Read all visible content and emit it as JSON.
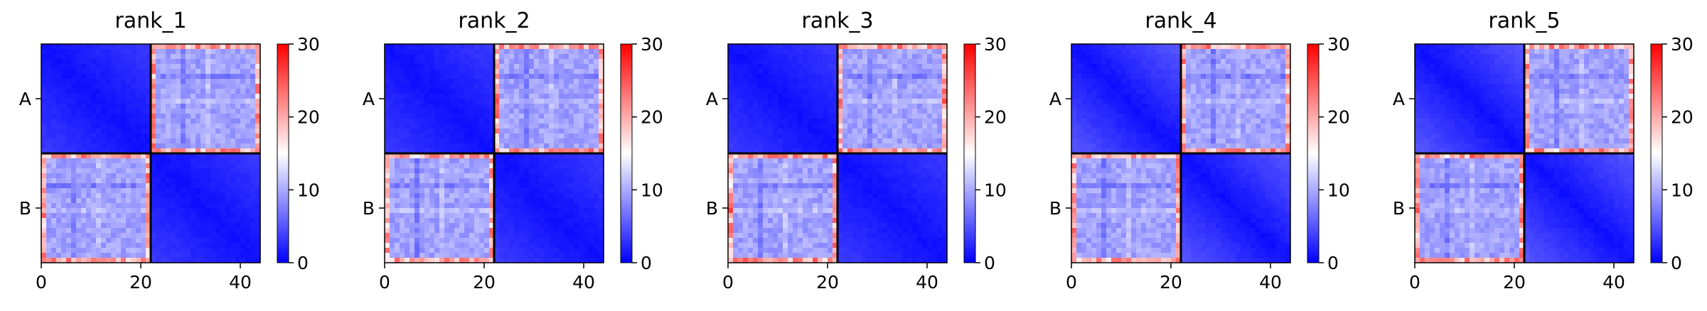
{
  "chart_data": [
    {
      "type": "heatmap",
      "title": "rank_1",
      "chain_labels": [
        "A",
        "B"
      ],
      "x_ticks": [
        0,
        20,
        40
      ],
      "xlim": [
        0,
        44
      ],
      "chain_boundary": 22,
      "colorbar": {
        "min": 0,
        "max": 30,
        "ticks": [
          0,
          10,
          20,
          30
        ],
        "colormap": "bwr"
      }
    },
    {
      "type": "heatmap",
      "title": "rank_2",
      "chain_labels": [
        "A",
        "B"
      ],
      "x_ticks": [
        0,
        20,
        40
      ],
      "xlim": [
        0,
        44
      ],
      "chain_boundary": 22,
      "colorbar": {
        "min": 0,
        "max": 30,
        "ticks": [
          0,
          10,
          20,
          30
        ],
        "colormap": "bwr"
      }
    },
    {
      "type": "heatmap",
      "title": "rank_3",
      "chain_labels": [
        "A",
        "B"
      ],
      "x_ticks": [
        0,
        20,
        40
      ],
      "xlim": [
        0,
        44
      ],
      "chain_boundary": 22,
      "colorbar": {
        "min": 0,
        "max": 30,
        "ticks": [
          0,
          10,
          20,
          30
        ],
        "colormap": "bwr"
      }
    },
    {
      "type": "heatmap",
      "title": "rank_4",
      "chain_labels": [
        "A",
        "B"
      ],
      "x_ticks": [
        0,
        20,
        40
      ],
      "xlim": [
        0,
        44
      ],
      "chain_boundary": 22,
      "colorbar": {
        "min": 0,
        "max": 30,
        "ticks": [
          0,
          10,
          20,
          30
        ],
        "colormap": "bwr"
      }
    },
    {
      "type": "heatmap",
      "title": "rank_5",
      "chain_labels": [
        "A",
        "B"
      ],
      "x_ticks": [
        0,
        20,
        40
      ],
      "xlim": [
        0,
        44
      ],
      "chain_boundary": 22,
      "colorbar": {
        "min": 0,
        "max": 30,
        "ticks": [
          0,
          10,
          20,
          30
        ],
        "colormap": "bwr"
      }
    }
  ]
}
